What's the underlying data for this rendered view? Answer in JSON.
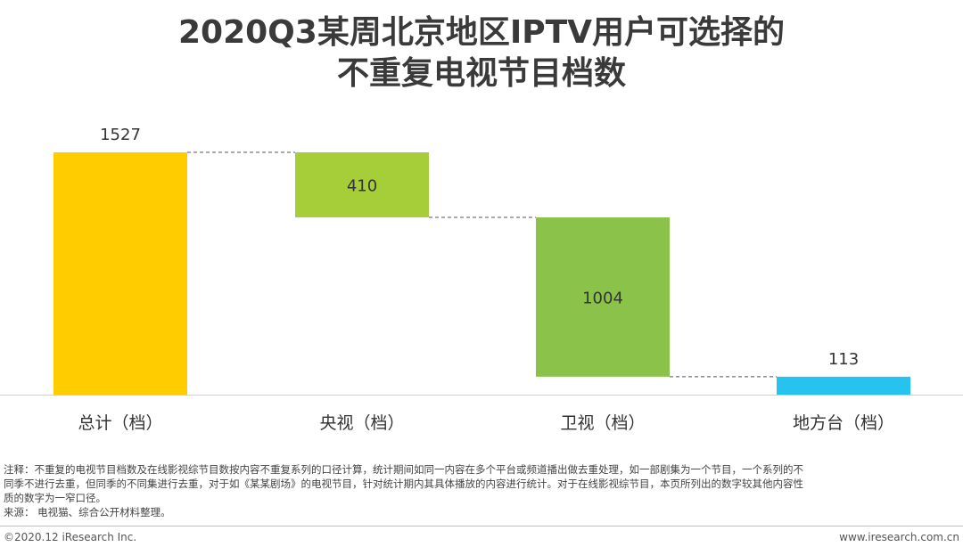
{
  "title_line1": "2020Q3某周北京地区IPTV用户可选择的",
  "title_line2": "不重复电视节目档数",
  "chart_data": {
    "type": "bar",
    "subtype": "waterfall",
    "categories": [
      "总计（档）",
      "央视（档）",
      "卫视（档）",
      "地方台（档）"
    ],
    "values": [
      1527,
      410,
      1004,
      113
    ],
    "ylim": [
      0,
      1527
    ],
    "colors": [
      "#FFCC00",
      "#A6CE39",
      "#8BC34A",
      "#25C3EE"
    ],
    "grid": false,
    "legend": "none"
  },
  "notes": {
    "line1": "注释：不重复的电视节目档数及在线影视综节目数按内容不重复系列的口径计算，统计期间如同一内容在多个平台或频道播出做去重处理，如一部剧集为一个节目，一个系列的不",
    "line2": "同季不进行去重，但同季的不同集进行去重，对于如《某某剧场》的电视节目，针对统计期内其具体播放的内容进行统计。对于在线影视综节目，本页所列出的数字较其他内容性",
    "line3": "质的数字为一窄口径。",
    "line4": "来源：  电视猫、综合公开材料整理。"
  },
  "footer": {
    "left": "©2020.12 iResearch Inc.",
    "right": "www.iresearch.com.cn"
  }
}
